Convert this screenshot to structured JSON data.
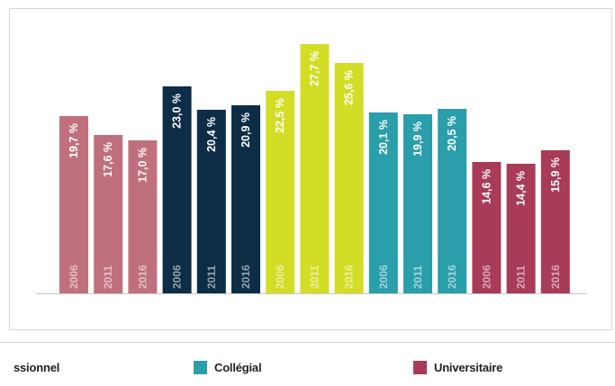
{
  "chart_data": {
    "type": "bar",
    "title": "",
    "xlabel": "",
    "ylabel": "",
    "ylim": [
      0,
      30
    ],
    "grid": false,
    "legend_position": "bottom",
    "groups": [
      {
        "name": "Professionnel",
        "legend_label": "ssionnel",
        "color": "#c0707c",
        "years": [
          "2006",
          "2011",
          "2016"
        ],
        "values": [
          19.7,
          17.6,
          17.0
        ],
        "labels": [
          "19,7 %",
          "17,6 %",
          "17,0 %"
        ]
      },
      {
        "name": "",
        "legend_label": "",
        "color": "#0c2d45",
        "years": [
          "2006",
          "2011",
          "2016"
        ],
        "values": [
          23.0,
          20.4,
          20.9
        ],
        "labels": [
          "23,0 %",
          "20,4 %",
          "20,9 %"
        ]
      },
      {
        "name": "",
        "legend_label": "",
        "color": "#d3dd26",
        "years": [
          "2006",
          "2011",
          "2016"
        ],
        "values": [
          22.5,
          27.7,
          25.6
        ],
        "labels": [
          "22,5 %",
          "27,7 %",
          "25,6 %"
        ]
      },
      {
        "name": "Collégial",
        "legend_label": "Collégial",
        "color": "#2a9eab",
        "years": [
          "2006",
          "2011",
          "2016"
        ],
        "values": [
          20.1,
          19.9,
          20.5
        ],
        "labels": [
          "20,1 %",
          "19,9 %",
          "20,5 %"
        ]
      },
      {
        "name": "Universitaire",
        "legend_label": "Universitaire",
        "color": "#a83b57",
        "years": [
          "2006",
          "2011",
          "2016"
        ],
        "values": [
          14.6,
          14.4,
          15.9
        ],
        "labels": [
          "14,6 %",
          "14,4 %",
          "15,9 %"
        ]
      }
    ]
  },
  "legend": {
    "items": [
      {
        "label": "ssionnel",
        "color": "#c0707c"
      },
      {
        "label": "Collégial",
        "color": "#2a9eab"
      },
      {
        "label": "Universitaire",
        "color": "#a83b57"
      }
    ]
  }
}
